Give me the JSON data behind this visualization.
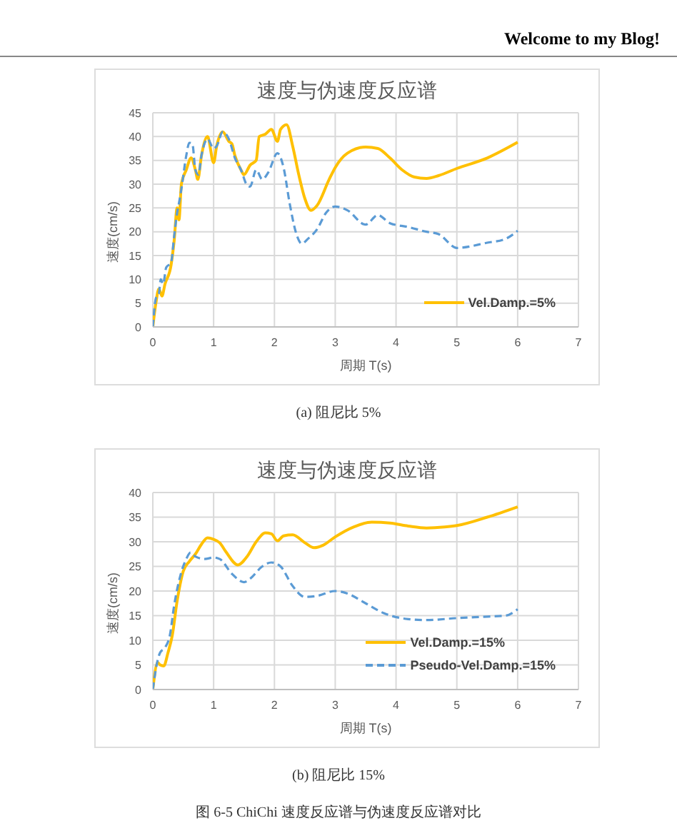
{
  "chart_data": [
    {
      "type": "line",
      "title": "速度与伪速度反应谱",
      "xlabel": "周期 T(s)",
      "ylabel": "速度(cm/s)",
      "xlim": [
        0,
        7
      ],
      "xticks": [
        0,
        1,
        2,
        3,
        4,
        5,
        6,
        7
      ],
      "ylim": [
        0,
        45
      ],
      "yticks": [
        0,
        5,
        10,
        15,
        20,
        25,
        30,
        35,
        40,
        45
      ],
      "grid": true,
      "legend": "bottom right",
      "marker": "none",
      "annotations": [
        "Welcome to my Blog!",
        "(a) 阻尼比 5%"
      ],
      "series": [
        {
          "name": "Vel.Damp.=5%",
          "color": "#ffc000",
          "line_style": "solid",
          "x": [
            0,
            0.05,
            0.1,
            0.15,
            0.2,
            0.3,
            0.35,
            0.4,
            0.43,
            0.47,
            0.55,
            0.63,
            0.7,
            0.74,
            0.8,
            0.9,
            1.0,
            1.05,
            1.15,
            1.25,
            1.3,
            1.35,
            1.45,
            1.5,
            1.6,
            1.7,
            1.75,
            1.85,
            1.95,
            2.05,
            2.1,
            2.2,
            2.3,
            2.4,
            2.5,
            2.6,
            2.7,
            2.9,
            3.0,
            3.2,
            3.5,
            3.7,
            3.9,
            4.1,
            4.3,
            4.5,
            4.7,
            5.0,
            5.5,
            6.0
          ],
          "values": [
            0,
            5,
            8,
            6.5,
            9,
            13,
            18,
            25,
            22.5,
            30,
            33,
            35.5,
            33,
            31,
            36,
            40,
            34.5,
            38,
            41,
            39,
            38.5,
            36,
            33,
            32,
            34,
            35,
            40,
            40.5,
            41.5,
            39,
            41.5,
            42.5,
            38,
            32,
            27,
            24.5,
            25.5,
            31,
            33.5,
            36.5,
            37.8,
            37.5,
            35.5,
            33,
            31.5,
            31.2,
            31.8,
            33.3,
            35.5,
            38.8
          ]
        },
        {
          "color": "#5b9bd5",
          "line_style": "dashed",
          "x": [
            0,
            0.05,
            0.1,
            0.13,
            0.17,
            0.22,
            0.3,
            0.35,
            0.4,
            0.43,
            0.47,
            0.55,
            0.6,
            0.65,
            0.7,
            0.75,
            0.8,
            0.9,
            1.0,
            1.05,
            1.15,
            1.25,
            1.35,
            1.45,
            1.55,
            1.6,
            1.7,
            1.8,
            1.9,
            2.05,
            2.15,
            2.25,
            2.35,
            2.45,
            2.55,
            2.7,
            2.85,
            3.0,
            3.2,
            3.5,
            3.7,
            3.9,
            4.2,
            4.5,
            4.7,
            5.0,
            5.5,
            5.8,
            6.0
          ],
          "values": [
            0,
            6,
            7,
            10,
            9,
            12.5,
            13.5,
            19,
            24,
            26,
            29,
            36,
            38.7,
            38.5,
            33,
            32,
            36,
            39.5,
            37.5,
            38,
            41,
            39.5,
            35.5,
            33,
            29.8,
            29.5,
            33,
            31,
            32.5,
            36.5,
            33.5,
            26,
            20,
            17.5,
            18.5,
            20.5,
            24,
            25.3,
            24.5,
            21.5,
            23.5,
            21.8,
            21,
            20,
            19.5,
            16.6,
            17.7,
            18.5,
            20.2
          ]
        }
      ]
    },
    {
      "type": "line",
      "title": "速度与伪速度反应谱",
      "xlabel": "周期 T(s)",
      "ylabel": "速度(cm/s)",
      "xlim": [
        0,
        7
      ],
      "xticks": [
        0,
        1,
        2,
        3,
        4,
        5,
        6,
        7
      ],
      "ylim": [
        0,
        40
      ],
      "yticks": [
        0,
        5,
        10,
        15,
        20,
        25,
        30,
        35,
        40
      ],
      "grid": true,
      "legend": "bottom right",
      "marker": "none",
      "annotations": [
        "(b) 阻尼比 15%",
        "图 6-5 ChiChi 速度反应谱与伪速度反应谱对比"
      ],
      "series": [
        {
          "name": "Vel.Damp.=15%",
          "color": "#ffc000",
          "line_style": "solid",
          "x": [
            0,
            0.08,
            0.12,
            0.18,
            0.25,
            0.32,
            0.4,
            0.5,
            0.6,
            0.7,
            0.8,
            0.9,
            1.0,
            1.1,
            1.2,
            1.4,
            1.55,
            1.7,
            1.85,
            1.95,
            2.05,
            2.15,
            2.3,
            2.5,
            2.65,
            2.8,
            3.0,
            3.3,
            3.6,
            3.9,
            4.2,
            4.5,
            4.8,
            5.0,
            5.5,
            6.0
          ],
          "values": [
            0,
            5.5,
            5,
            4.8,
            7.5,
            11,
            18,
            24,
            26,
            27.5,
            29.5,
            30.8,
            30.5,
            29.8,
            28,
            25.3,
            27,
            30,
            31.8,
            31.6,
            30.2,
            31.2,
            31.4,
            29.8,
            28.8,
            29.3,
            31,
            33,
            34,
            33.8,
            33.2,
            32.8,
            33,
            33.3,
            35,
            37.1
          ]
        },
        {
          "name": "Pseudo-Vel.Damp.=15%",
          "color": "#5b9bd5",
          "line_style": "dashed",
          "x": [
            0,
            0.08,
            0.12,
            0.2,
            0.28,
            0.35,
            0.45,
            0.55,
            0.62,
            0.7,
            0.85,
            1.0,
            1.1,
            1.3,
            1.5,
            1.6,
            1.8,
            1.95,
            2.1,
            2.3,
            2.5,
            2.7,
            3.0,
            3.2,
            3.5,
            3.8,
            4.2,
            4.5,
            5.0,
            5.5,
            5.8,
            6.0
          ],
          "values": [
            0,
            6,
            7.5,
            8.5,
            11,
            17,
            23,
            26.5,
            27.8,
            27,
            26.5,
            26.8,
            26.5,
            23.5,
            21.8,
            22.5,
            25,
            25.8,
            25,
            21,
            18.8,
            19,
            20,
            19.5,
            17.5,
            15.5,
            14.3,
            14.1,
            14.5,
            14.8,
            15,
            16.3
          ]
        }
      ]
    }
  ]
}
